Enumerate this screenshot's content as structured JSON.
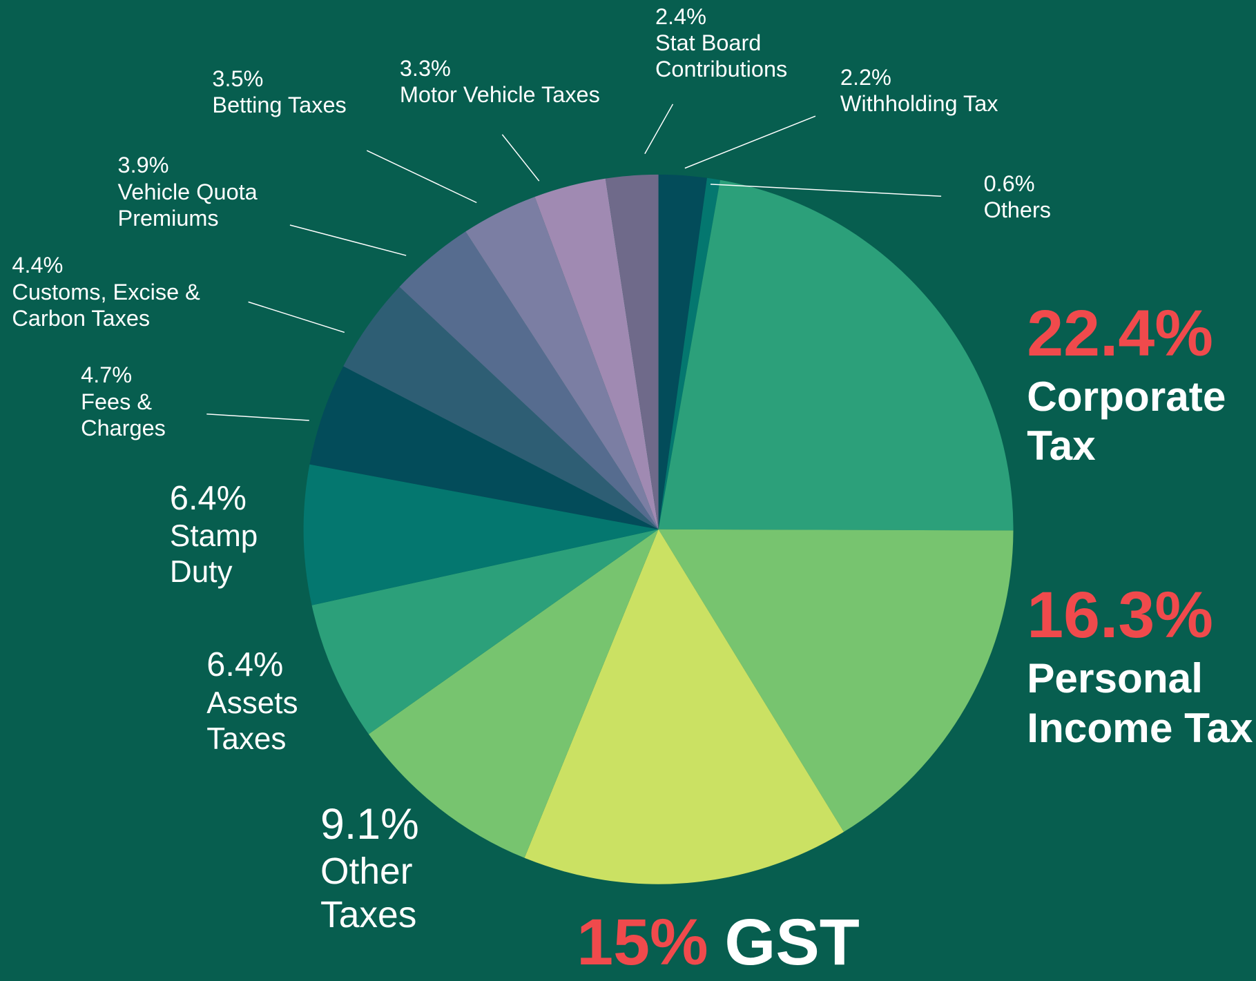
{
  "chart_data": {
    "type": "pie",
    "labels": [
      "Withholding Tax",
      "Others",
      "Corporate Tax",
      "Personal Income Tax",
      "GST",
      "Other Taxes",
      "Assets Taxes",
      "Stamp Duty",
      "Fees & Charges",
      "Customs, Excise & Carbon Taxes",
      "Vehicle Quota Premiums",
      "Betting Taxes",
      "Motor Vehicle Taxes",
      "Stat Board Contributions"
    ],
    "values": [
      2.2,
      0.6,
      22.4,
      16.3,
      15,
      9.1,
      6.4,
      6.4,
      4.7,
      4.4,
      3.9,
      3.5,
      3.3,
      2.4
    ],
    "value_labels": [
      "2.2%",
      "0.6%",
      "22.4%",
      "16.3%",
      "15%",
      "9.1%",
      "6.4%",
      "6.4%",
      "4.7%",
      "4.4%",
      "3.9%",
      "3.5%",
      "3.3%",
      "2.4%"
    ],
    "colors": [
      "#034c5a",
      "#04776f",
      "#2ca07a",
      "#77c46f",
      "#cbe163",
      "#77c46f",
      "#2ca07a",
      "#04776f",
      "#034c5a",
      "#2e5e74",
      "#566c8f",
      "#7b7ea3",
      "#a08ab2",
      "#6f6a8a"
    ]
  }
}
